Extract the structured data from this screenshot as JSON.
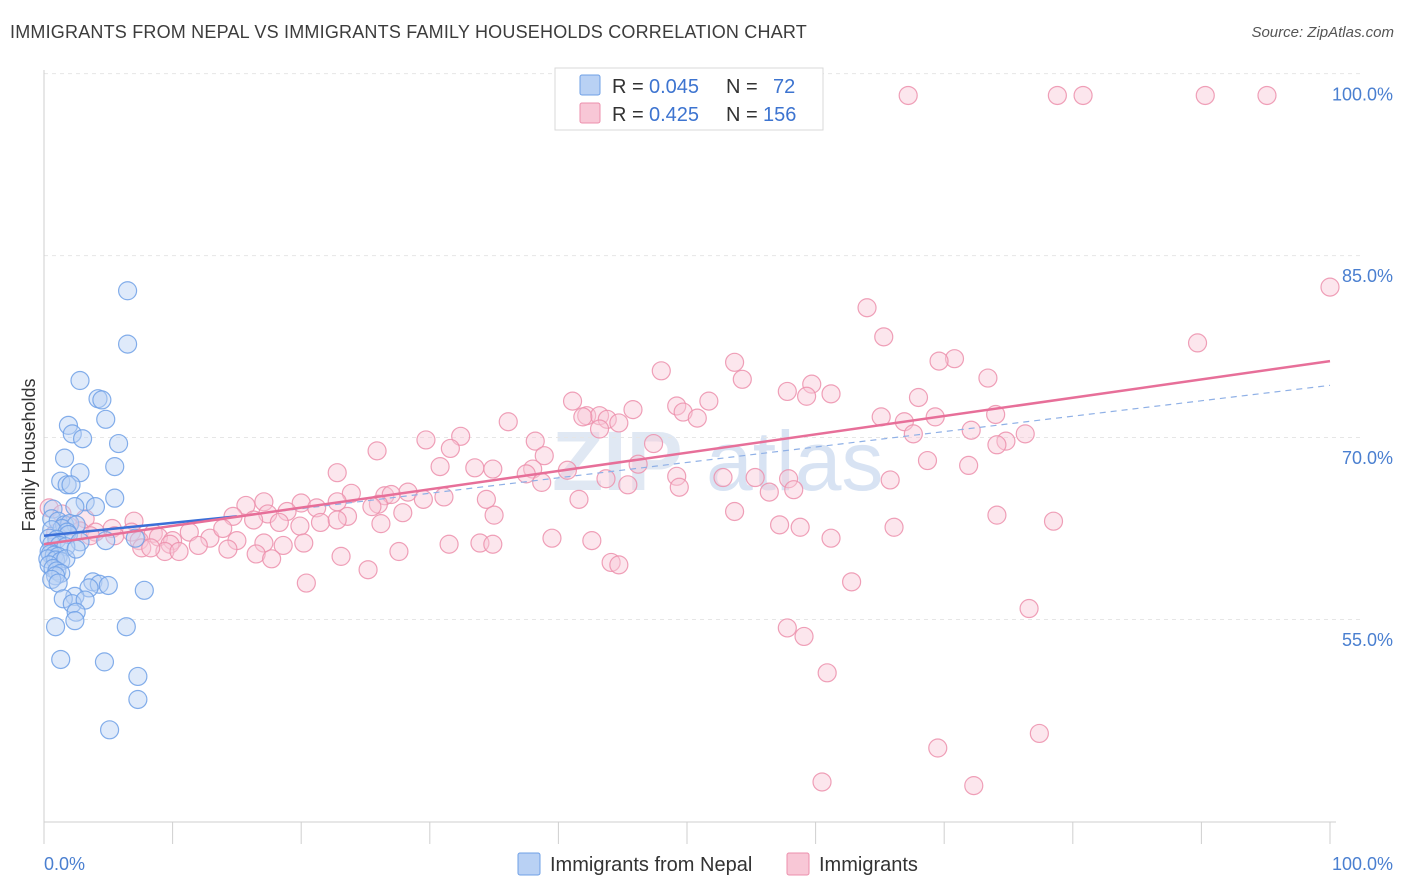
{
  "title": "IMMIGRANTS FROM NEPAL VS IMMIGRANTS FAMILY HOUSEHOLDS CORRELATION CHART",
  "source": "Source: ZipAtlas.com",
  "watermark": {
    "part1": "ZIP",
    "part2": "atlas"
  },
  "legend": {
    "rows": [
      {
        "r_label": "R =",
        "r_value": "0.045",
        "n_label": "N =",
        "n_value": "72",
        "color": "#6fa0e6",
        "fill": "#b9d1f4"
      },
      {
        "r_label": "R =",
        "r_value": "0.425",
        "n_label": "N =",
        "n_value": "156",
        "color": "#ec8fac",
        "fill": "#f8c7d6"
      }
    ]
  },
  "bottom_legend": [
    {
      "label": "Immigrants from Nepal",
      "color": "#6fa0e6",
      "fill": "#b9d1f4"
    },
    {
      "label": "Immigrants",
      "color": "#ec8fac",
      "fill": "#f8c7d6"
    }
  ],
  "chart_data": {
    "type": "scatter",
    "title": "IMMIGRANTS FROM NEPAL VS IMMIGRANTS FAMILY HOUSEHOLDS CORRELATION CHART",
    "xlabel": "",
    "ylabel": "Family Households",
    "xlim": [
      0,
      100
    ],
    "ylim": [
      40,
      102
    ],
    "x_tick_labels": [
      "0.0%",
      "100.0%"
    ],
    "y_ticks": [
      55,
      70,
      85,
      100
    ],
    "y_tick_labels": [
      "55.0%",
      "70.0%",
      "85.0%",
      "100.0%"
    ],
    "grid": true,
    "legend_position": "top-center",
    "series": [
      {
        "name": "Immigrants from Nepal",
        "color": "#6fa0e6",
        "fill": "#b9d1f4",
        "trend": {
          "x": [
            0,
            15
          ],
          "y": [
            63.6,
            65.2
          ],
          "style": "solid",
          "color": "#3a6fd8"
        },
        "trend_ext": {
          "x": [
            15,
            100
          ],
          "y": [
            65.2,
            76.0
          ],
          "style": "dashed",
          "color": "#8fb0e6"
        },
        "points": [
          [
            6.5,
            83.8
          ],
          [
            6.5,
            79.4
          ],
          [
            2.8,
            76.4
          ],
          [
            4.2,
            74.9
          ],
          [
            4.5,
            74.8
          ],
          [
            1.9,
            72.7
          ],
          [
            4.8,
            73.2
          ],
          [
            2.2,
            72.0
          ],
          [
            3.0,
            71.6
          ],
          [
            5.8,
            71.2
          ],
          [
            1.6,
            70.0
          ],
          [
            5.5,
            69.3
          ],
          [
            2.8,
            68.8
          ],
          [
            1.3,
            68.1
          ],
          [
            1.8,
            67.8
          ],
          [
            2.1,
            67.8
          ],
          [
            5.5,
            66.7
          ],
          [
            3.2,
            66.4
          ],
          [
            2.4,
            66.0
          ],
          [
            4.0,
            66.0
          ],
          [
            0.7,
            65.8
          ],
          [
            0.6,
            65.0
          ],
          [
            1.1,
            64.8
          ],
          [
            1.6,
            64.5
          ],
          [
            2.0,
            64.6
          ],
          [
            2.5,
            64.5
          ],
          [
            1.4,
            64.2
          ],
          [
            0.6,
            64.1
          ],
          [
            1.8,
            63.9
          ],
          [
            1.9,
            63.7
          ],
          [
            0.4,
            63.4
          ],
          [
            1.0,
            63.3
          ],
          [
            2.8,
            63.1
          ],
          [
            4.8,
            63.2
          ],
          [
            7.1,
            63.4
          ],
          [
            0.6,
            62.9
          ],
          [
            1.2,
            62.8
          ],
          [
            1.7,
            62.7
          ],
          [
            0.4,
            62.3
          ],
          [
            0.5,
            62.1
          ],
          [
            0.8,
            62.0
          ],
          [
            1.1,
            61.9
          ],
          [
            0.3,
            61.7
          ],
          [
            0.9,
            61.6
          ],
          [
            1.3,
            61.5
          ],
          [
            1.7,
            61.7
          ],
          [
            0.4,
            61.2
          ],
          [
            0.7,
            60.9
          ],
          [
            1.0,
            60.7
          ],
          [
            1.3,
            60.5
          ],
          [
            0.9,
            60.3
          ],
          [
            0.6,
            60.0
          ],
          [
            1.1,
            59.7
          ],
          [
            3.8,
            59.8
          ],
          [
            4.3,
            59.6
          ],
          [
            5.0,
            59.5
          ],
          [
            3.5,
            59.3
          ],
          [
            7.8,
            59.1
          ],
          [
            2.4,
            58.6
          ],
          [
            1.5,
            58.4
          ],
          [
            2.2,
            58.0
          ],
          [
            3.2,
            58.3
          ],
          [
            2.5,
            57.3
          ],
          [
            2.4,
            56.6
          ],
          [
            0.9,
            56.1
          ],
          [
            6.4,
            56.1
          ],
          [
            1.3,
            53.4
          ],
          [
            4.7,
            53.2
          ],
          [
            7.3,
            52.0
          ],
          [
            7.3,
            50.1
          ],
          [
            5.1,
            47.6
          ],
          [
            2.5,
            62.5
          ]
        ]
      },
      {
        "name": "Immigrants",
        "color": "#ec8fac",
        "fill": "#f8c7d6",
        "trend": {
          "x": [
            0,
            100
          ],
          "y": [
            62.9,
            78.0
          ],
          "style": "solid",
          "color": "#e76f99"
        },
        "points": [
          [
            67.2,
            99.9
          ],
          [
            78.8,
            99.9
          ],
          [
            80.8,
            99.9
          ],
          [
            90.3,
            99.9
          ],
          [
            95.1,
            99.9
          ],
          [
            100,
            84.1
          ],
          [
            64.0,
            82.4
          ],
          [
            65.3,
            80.0
          ],
          [
            89.7,
            79.5
          ],
          [
            70.8,
            78.2
          ],
          [
            69.6,
            78.0
          ],
          [
            53.7,
            77.9
          ],
          [
            48.0,
            77.2
          ],
          [
            73.4,
            76.6
          ],
          [
            54.3,
            76.5
          ],
          [
            59.7,
            76.1
          ],
          [
            57.8,
            75.5
          ],
          [
            61.2,
            75.3
          ],
          [
            59.3,
            75.1
          ],
          [
            68.0,
            75.0
          ],
          [
            51.7,
            74.7
          ],
          [
            49.2,
            74.3
          ],
          [
            41.1,
            74.7
          ],
          [
            45.8,
            74.0
          ],
          [
            49.7,
            73.8
          ],
          [
            42.2,
            73.5
          ],
          [
            43.2,
            73.5
          ],
          [
            41.9,
            73.4
          ],
          [
            74.0,
            73.6
          ],
          [
            65.1,
            73.4
          ],
          [
            69.3,
            73.4
          ],
          [
            50.8,
            73.3
          ],
          [
            43.8,
            73.2
          ],
          [
            36.1,
            73.0
          ],
          [
            44.7,
            72.9
          ],
          [
            66.9,
            73.0
          ],
          [
            43.2,
            72.4
          ],
          [
            72.1,
            72.3
          ],
          [
            76.3,
            72.0
          ],
          [
            32.4,
            71.8
          ],
          [
            67.6,
            72.0
          ],
          [
            38.2,
            71.4
          ],
          [
            74.8,
            71.4
          ],
          [
            47.4,
            71.2
          ],
          [
            29.7,
            71.5
          ],
          [
            74.1,
            71.1
          ],
          [
            31.6,
            70.8
          ],
          [
            25.9,
            70.6
          ],
          [
            38.9,
            70.2
          ],
          [
            68.7,
            69.8
          ],
          [
            71.9,
            69.4
          ],
          [
            46.2,
            69.5
          ],
          [
            30.8,
            69.3
          ],
          [
            38.0,
            69.1
          ],
          [
            40.7,
            69.0
          ],
          [
            22.8,
            68.8
          ],
          [
            34.9,
            69.1
          ],
          [
            33.5,
            69.2
          ],
          [
            37.5,
            68.7
          ],
          [
            43.7,
            68.3
          ],
          [
            49.2,
            68.5
          ],
          [
            52.8,
            68.4
          ],
          [
            55.3,
            68.4
          ],
          [
            65.8,
            68.2
          ],
          [
            57.9,
            68.3
          ],
          [
            38.7,
            68.0
          ],
          [
            45.4,
            67.8
          ],
          [
            49.4,
            67.6
          ],
          [
            58.3,
            67.4
          ],
          [
            56.4,
            67.2
          ],
          [
            28.3,
            67.2
          ],
          [
            23.9,
            67.1
          ],
          [
            26.5,
            66.9
          ],
          [
            27.0,
            67.0
          ],
          [
            31.1,
            66.8
          ],
          [
            29.5,
            66.6
          ],
          [
            34.4,
            66.6
          ],
          [
            41.6,
            66.6
          ],
          [
            22.8,
            66.4
          ],
          [
            26.0,
            66.2
          ],
          [
            20.0,
            66.3
          ],
          [
            17.1,
            66.4
          ],
          [
            15.7,
            66.1
          ],
          [
            25.5,
            66.0
          ],
          [
            21.2,
            65.9
          ],
          [
            27.9,
            65.5
          ],
          [
            17.4,
            65.4
          ],
          [
            18.9,
            65.6
          ],
          [
            35.0,
            65.3
          ],
          [
            0.4,
            65.9
          ],
          [
            1.4,
            65.4
          ],
          [
            53.7,
            65.6
          ],
          [
            74.1,
            65.3
          ],
          [
            23.6,
            65.2
          ],
          [
            3.2,
            65.0
          ],
          [
            14.7,
            65.2
          ],
          [
            16.3,
            64.9
          ],
          [
            21.5,
            64.7
          ],
          [
            7.0,
            64.8
          ],
          [
            18.3,
            64.7
          ],
          [
            26.2,
            64.6
          ],
          [
            19.9,
            64.4
          ],
          [
            57.2,
            64.5
          ],
          [
            78.5,
            64.8
          ],
          [
            66.1,
            64.3
          ],
          [
            1.9,
            64.4
          ],
          [
            2.8,
            64.0
          ],
          [
            0.9,
            63.8
          ],
          [
            4.0,
            63.9
          ],
          [
            5.3,
            64.2
          ],
          [
            6.8,
            63.9
          ],
          [
            8.5,
            63.8
          ],
          [
            3.6,
            63.6
          ],
          [
            11.3,
            63.9
          ],
          [
            12.9,
            63.4
          ],
          [
            15.0,
            63.2
          ],
          [
            8.9,
            63.5
          ],
          [
            7.4,
            63.2
          ],
          [
            10.0,
            63.2
          ],
          [
            5.5,
            63.6
          ],
          [
            9.8,
            62.9
          ],
          [
            12.0,
            62.8
          ],
          [
            17.1,
            63.0
          ],
          [
            20.2,
            63.0
          ],
          [
            14.3,
            62.5
          ],
          [
            7.6,
            62.6
          ],
          [
            18.6,
            62.8
          ],
          [
            9.4,
            62.3
          ],
          [
            10.5,
            62.3
          ],
          [
            16.5,
            62.1
          ],
          [
            17.7,
            61.7
          ],
          [
            27.6,
            62.3
          ],
          [
            31.5,
            62.9
          ],
          [
            33.9,
            63.0
          ],
          [
            34.9,
            62.9
          ],
          [
            39.5,
            63.4
          ],
          [
            42.6,
            63.2
          ],
          [
            58.8,
            64.3
          ],
          [
            61.2,
            63.4
          ],
          [
            23.1,
            61.9
          ],
          [
            44.1,
            61.4
          ],
          [
            44.7,
            61.2
          ],
          [
            25.2,
            60.8
          ],
          [
            20.4,
            59.7
          ],
          [
            62.8,
            59.8
          ],
          [
            76.6,
            57.6
          ],
          [
            57.8,
            56.0
          ],
          [
            59.1,
            55.3
          ],
          [
            60.9,
            52.3
          ],
          [
            77.4,
            47.3
          ],
          [
            69.5,
            46.1
          ],
          [
            60.5,
            43.3
          ],
          [
            72.3,
            43.0
          ],
          [
            22.8,
            64.9
          ],
          [
            13.9,
            64.2
          ],
          [
            8.3,
            62.6
          ]
        ]
      }
    ]
  }
}
